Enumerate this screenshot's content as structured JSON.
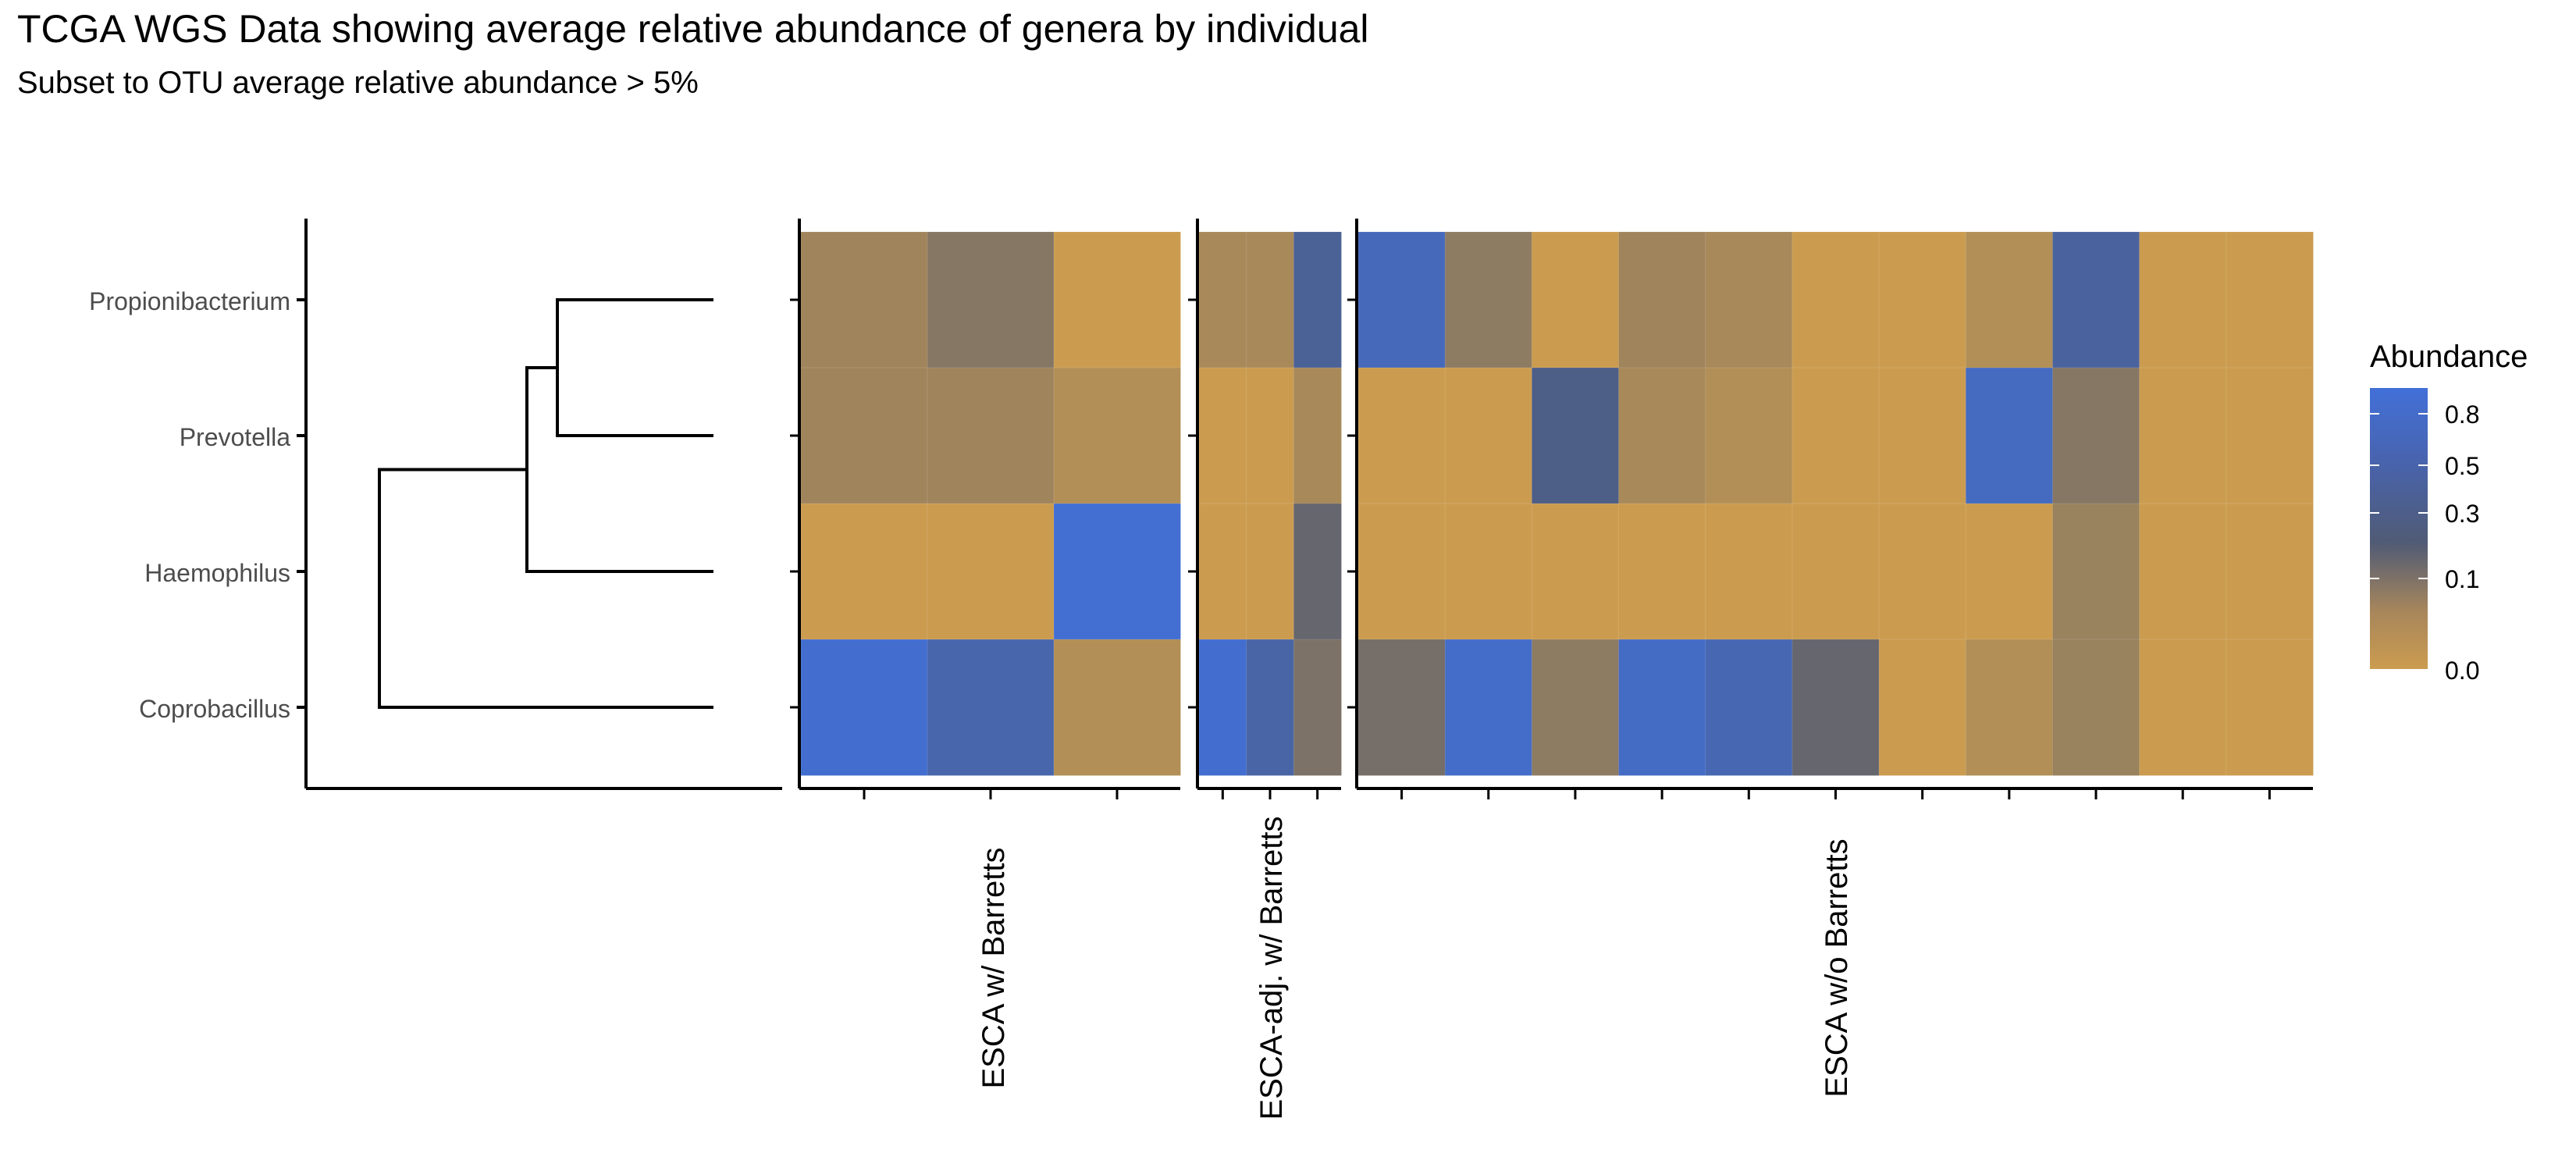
{
  "title": "TCGA WGS Data showing average relative abundance of genera by individual",
  "subtitle": "Subset to OTU average relative abundance > 5%",
  "chart_data": {
    "type": "heatmap",
    "title": "TCGA WGS Data showing average relative abundance of genera by individual",
    "subtitle": "Subset to OTU average relative abundance > 5%",
    "rows": [
      "Propionibacterium",
      "Prevotella",
      "Haemophilus",
      "Coprobacillus"
    ],
    "dendrogram": {
      "leaf_order": [
        "Propionibacterium",
        "Prevotella",
        "Haemophilus",
        "Coprobacillus"
      ],
      "merges": [
        [
          "Propionibacterium",
          "Prevotella"
        ],
        [
          "Propionibacterium+Prevotella",
          "Haemophilus"
        ],
        [
          "Propionibacterium+Prevotella+Haemophilus",
          "Coprobacillus"
        ]
      ]
    },
    "facets": [
      {
        "label": "ESCA w/ Barretts",
        "n_individuals": 3,
        "values": [
          [
            0.03,
            0.08,
            0.0
          ],
          [
            0.03,
            0.03,
            0.01
          ],
          [
            0.0,
            0.0,
            0.95
          ],
          [
            0.92,
            0.6,
            0.01
          ]
        ]
      },
      {
        "label": "ESCA-adj. w/ Barretts",
        "n_individuals": 3,
        "values": [
          [
            0.02,
            0.02,
            0.45
          ],
          [
            0.0,
            0.0,
            0.02
          ],
          [
            0.0,
            0.0,
            0.17
          ],
          [
            0.92,
            0.55,
            0.1
          ]
        ]
      },
      {
        "label": "ESCA w/o Barretts",
        "n_individuals": 11,
        "values": [
          [
            0.72,
            0.06,
            0.0,
            0.03,
            0.02,
            0.0,
            0.0,
            0.01,
            0.5,
            0.0,
            0.0
          ],
          [
            0.0,
            0.0,
            0.35,
            0.02,
            0.01,
            0.0,
            0.0,
            0.78,
            0.08,
            0.0,
            0.0
          ],
          [
            0.0,
            0.0,
            0.0,
            0.0,
            0.0,
            0.0,
            0.0,
            0.0,
            0.04,
            0.0,
            0.0
          ],
          [
            0.12,
            0.85,
            0.06,
            0.82,
            0.65,
            0.17,
            0.0,
            0.01,
            0.04,
            0.0,
            0.0
          ]
        ]
      }
    ],
    "legend": {
      "title": "Abundance",
      "ticks": [
        "0.8",
        "0.5",
        "0.3",
        "0.1",
        "0.0"
      ],
      "position": "right",
      "scale": "square-root",
      "colors": [
        "#cb9c4f",
        "#4f5a75",
        "#4270d8"
      ]
    },
    "grid": false
  }
}
